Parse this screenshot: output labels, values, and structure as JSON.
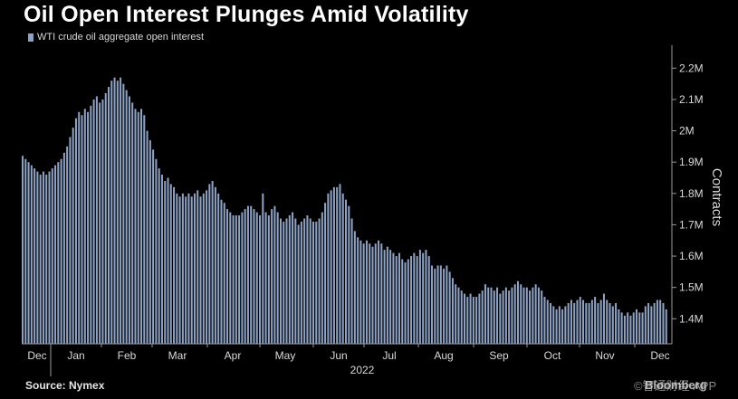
{
  "title": "Oil Open Interest Plunges Amid Volatility",
  "source": "Source: Nymex",
  "watermark": "©智通财经 APP",
  "brand": "Bloomberg",
  "colors": {
    "bar": "#8da3c6",
    "background": "#000000",
    "axis": "#9a9a9a",
    "text": "#d9d9d9"
  },
  "chart_data": {
    "type": "bar",
    "series": [
      {
        "name": "WTI crude oil aggregate open interest"
      }
    ],
    "ylabel": "Contracts",
    "xlabel": "2022",
    "ylim": [
      1.32,
      2.25
    ],
    "yticks": [
      {
        "value": 1.4,
        "label": "1.4M"
      },
      {
        "value": 1.5,
        "label": "1.5M"
      },
      {
        "value": 1.6,
        "label": "1.6M"
      },
      {
        "value": 1.7,
        "label": "1.7M"
      },
      {
        "value": 1.8,
        "label": "1.8M"
      },
      {
        "value": 1.9,
        "label": "1.9M"
      },
      {
        "value": 2.0,
        "label": "2M"
      },
      {
        "value": 2.1,
        "label": "2.1M"
      },
      {
        "value": 2.2,
        "label": "2.2M"
      }
    ],
    "months": [
      "Dec",
      "Jan",
      "Feb",
      "Mar",
      "Apr",
      "May",
      "Jun",
      "Jul",
      "Aug",
      "Sep",
      "Oct",
      "Nov",
      "Dec"
    ],
    "year_label": "2022",
    "values_millions": [
      1.92,
      1.91,
      1.9,
      1.89,
      1.88,
      1.87,
      1.86,
      1.87,
      1.86,
      1.87,
      1.88,
      1.89,
      1.9,
      1.91,
      1.93,
      1.95,
      1.98,
      2.01,
      2.04,
      2.06,
      2.05,
      2.07,
      2.06,
      2.08,
      2.1,
      2.11,
      2.09,
      2.1,
      2.12,
      2.14,
      2.16,
      2.17,
      2.16,
      2.17,
      2.15,
      2.13,
      2.11,
      2.09,
      2.07,
      2.06,
      2.07,
      2.05,
      2.0,
      1.97,
      1.94,
      1.91,
      1.88,
      1.86,
      1.84,
      1.85,
      1.83,
      1.82,
      1.8,
      1.79,
      1.8,
      1.79,
      1.8,
      1.79,
      1.8,
      1.81,
      1.79,
      1.8,
      1.81,
      1.83,
      1.84,
      1.82,
      1.8,
      1.78,
      1.77,
      1.75,
      1.74,
      1.73,
      1.73,
      1.73,
      1.74,
      1.75,
      1.76,
      1.76,
      1.75,
      1.74,
      1.73,
      1.8,
      1.74,
      1.73,
      1.75,
      1.76,
      1.74,
      1.72,
      1.71,
      1.72,
      1.73,
      1.74,
      1.72,
      1.7,
      1.71,
      1.72,
      1.73,
      1.72,
      1.71,
      1.71,
      1.72,
      1.74,
      1.77,
      1.8,
      1.81,
      1.82,
      1.82,
      1.83,
      1.8,
      1.78,
      1.76,
      1.72,
      1.68,
      1.66,
      1.65,
      1.64,
      1.65,
      1.64,
      1.63,
      1.64,
      1.65,
      1.64,
      1.62,
      1.63,
      1.62,
      1.61,
      1.6,
      1.61,
      1.59,
      1.58,
      1.59,
      1.6,
      1.61,
      1.6,
      1.62,
      1.61,
      1.62,
      1.6,
      1.57,
      1.56,
      1.57,
      1.57,
      1.56,
      1.57,
      1.55,
      1.53,
      1.51,
      1.5,
      1.49,
      1.48,
      1.47,
      1.48,
      1.47,
      1.47,
      1.48,
      1.49,
      1.51,
      1.5,
      1.5,
      1.49,
      1.5,
      1.48,
      1.49,
      1.5,
      1.49,
      1.5,
      1.51,
      1.52,
      1.51,
      1.5,
      1.5,
      1.49,
      1.5,
      1.51,
      1.5,
      1.49,
      1.47,
      1.46,
      1.45,
      1.44,
      1.43,
      1.44,
      1.43,
      1.44,
      1.45,
      1.46,
      1.45,
      1.46,
      1.47,
      1.46,
      1.45,
      1.45,
      1.46,
      1.47,
      1.45,
      1.46,
      1.48,
      1.46,
      1.45,
      1.44,
      1.45,
      1.43,
      1.42,
      1.41,
      1.42,
      1.41,
      1.42,
      1.43,
      1.42,
      1.42,
      1.44,
      1.45,
      1.44,
      1.45,
      1.46,
      1.46,
      1.45,
      1.43
    ]
  }
}
